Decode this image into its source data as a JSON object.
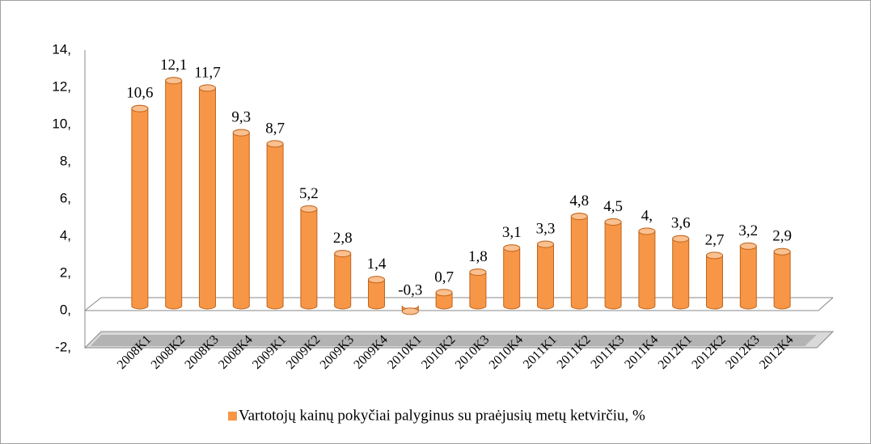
{
  "chart_data": {
    "type": "bar",
    "categories": [
      "2008K1",
      "2008K2",
      "2008K3",
      "2008K4",
      "2009K1",
      "2009K2",
      "2009K3",
      "2009K4",
      "2010K1",
      "2010K2",
      "2010K3",
      "2010K4",
      "2011K1",
      "2011K2",
      "2011K3",
      "2011K4",
      "2012K1",
      "2012K2",
      "2012K3",
      "2012K4"
    ],
    "series": [
      {
        "name": "Vartotojų kainų pokyčiai palyginus su praėjusių metų ketvirčiu, %",
        "color": "#f79646",
        "values": [
          10.6,
          12.1,
          11.7,
          9.3,
          8.7,
          5.2,
          2.8,
          1.4,
          -0.3,
          0.7,
          1.8,
          3.1,
          3.3,
          4.8,
          4.5,
          4,
          3.6,
          2.7,
          3.2,
          2.9
        ],
        "value_labels": [
          "10,6",
          "12,1",
          "11,7",
          "9,3",
          "8,7",
          "5,2",
          "2,8",
          "1,4",
          "-0,3",
          "0,7",
          "1,8",
          "3,1",
          "3,3",
          "4,8",
          "4,5",
          "4,",
          "3,6",
          "2,7",
          "3,2",
          "2,9"
        ]
      }
    ],
    "ylim": [
      -2,
      14
    ],
    "yticks": [
      {
        "value": -2,
        "label": "-2,"
      },
      {
        "value": 0,
        "label": "0,"
      },
      {
        "value": 2,
        "label": "2,"
      },
      {
        "value": 4,
        "label": "4,"
      },
      {
        "value": 6,
        "label": "6,"
      },
      {
        "value": 8,
        "label": "8,"
      },
      {
        "value": 10,
        "label": "10,"
      },
      {
        "value": 12,
        "label": "12,"
      },
      {
        "value": 14,
        "label": "14,"
      }
    ],
    "grid": false,
    "legend": "bottom"
  }
}
